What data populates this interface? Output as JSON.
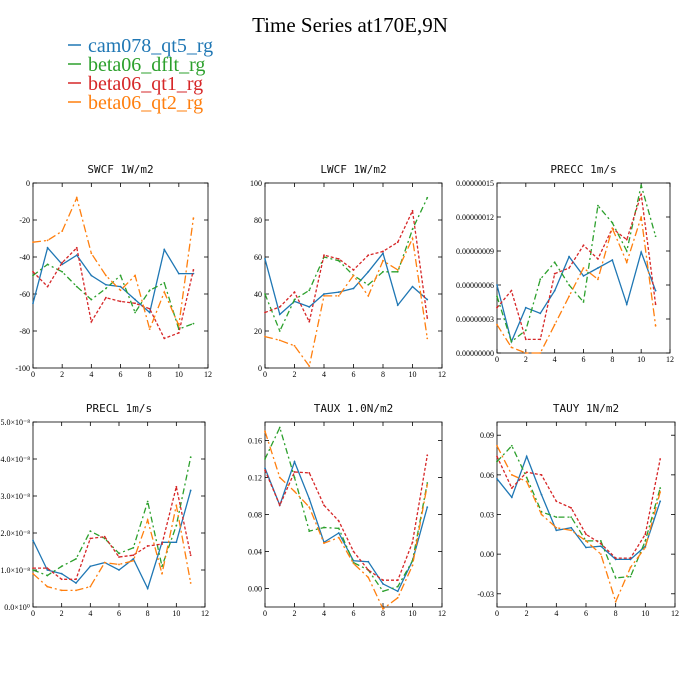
{
  "figure": {
    "title": "Time Series at170E,9N",
    "legend": [
      {
        "name": "cam078_qt5_rg",
        "color": "#1f77b4"
      },
      {
        "name": "beta06_dflt_rg",
        "color": "#2ca02c"
      },
      {
        "name": "beta06_qt1_rg",
        "color": "#d62728"
      },
      {
        "name": "beta06_qt2_rg",
        "color": "#ff7f0e"
      }
    ],
    "colors": {
      "cam078_qt5_rg": "#1f77b4",
      "beta06_dflt_rg": "#2ca02c",
      "beta06_qt1_rg": "#d62728",
      "beta06_qt2_rg": "#ff7f0e"
    }
  },
  "chart_data": [
    {
      "type": "line",
      "title": "SWCF   1W/m2",
      "xlim": [
        0,
        12
      ],
      "ylim": [
        -100,
        0
      ],
      "xticks": [
        0,
        2,
        4,
        6,
        8,
        10,
        12
      ],
      "xtick_labels": [
        "0",
        "2",
        "4",
        "6",
        "8",
        "10",
        "12"
      ],
      "yticks": [
        -100,
        -80,
        -60,
        -40,
        -20,
        0
      ],
      "ytick_labels": [
        "-100",
        "-80",
        "-60",
        "-40",
        "-20",
        "0"
      ],
      "x": [
        0,
        1,
        2,
        3,
        4,
        5,
        6,
        7,
        8,
        9,
        10,
        11
      ],
      "series": [
        {
          "name": "cam078_qt5_rg",
          "values": [
            -65,
            -35,
            -44,
            -39,
            -50,
            -55,
            -56,
            -63,
            -70,
            -36,
            -49,
            -49
          ]
        },
        {
          "name": "beta06_dflt_rg",
          "values": [
            -50,
            -44,
            -48,
            -56,
            -63,
            -57,
            -50,
            -70,
            -58,
            -54,
            -79,
            -76
          ]
        },
        {
          "name": "beta06_qt1_rg",
          "values": [
            -48,
            -56,
            -43,
            -35,
            -75,
            -62,
            -64,
            -65,
            -68,
            -84,
            -81,
            -47
          ]
        },
        {
          "name": "beta06_qt2_rg",
          "values": [
            -32,
            -31,
            -26,
            -8,
            -38,
            -50,
            -58,
            -50,
            -79,
            -59,
            -77,
            -19
          ]
        }
      ]
    },
    {
      "type": "line",
      "title": "LWCF   1W/m2",
      "xlim": [
        0,
        12
      ],
      "ylim": [
        0,
        100
      ],
      "xticks": [
        0,
        2,
        4,
        6,
        8,
        10,
        12
      ],
      "xtick_labels": [
        "0",
        "2",
        "4",
        "6",
        "8",
        "10",
        "12"
      ],
      "yticks": [
        0,
        20,
        40,
        60,
        80,
        100
      ],
      "ytick_labels": [
        "0",
        "20",
        "40",
        "60",
        "80",
        "100"
      ],
      "x": [
        0,
        1,
        2,
        3,
        4,
        5,
        6,
        7,
        8,
        9,
        10,
        11
      ],
      "series": [
        {
          "name": "cam078_qt5_rg",
          "values": [
            59,
            29,
            36,
            33,
            40,
            41,
            43,
            52,
            62,
            34,
            44,
            37
          ]
        },
        {
          "name": "beta06_dflt_rg",
          "values": [
            40,
            20,
            37,
            42,
            60,
            58,
            50,
            45,
            52,
            52,
            75,
            92
          ]
        },
        {
          "name": "beta06_qt1_rg",
          "values": [
            30,
            33,
            41,
            25,
            61,
            59,
            53,
            61,
            63,
            68,
            85,
            27
          ]
        },
        {
          "name": "beta06_qt2_rg",
          "values": [
            17,
            15,
            12,
            1,
            39,
            39,
            50,
            39,
            58,
            53,
            70,
            16
          ]
        }
      ]
    },
    {
      "type": "line",
      "title": "PRECC   1m/s",
      "xlim": [
        0,
        12
      ],
      "ylim": [
        0,
        1.5e-07
      ],
      "xticks": [
        0,
        2,
        4,
        6,
        8,
        10,
        12
      ],
      "xtick_labels": [
        "0",
        "2",
        "4",
        "6",
        "8",
        "10",
        "12"
      ],
      "yticks": [
        0,
        3e-08,
        6e-08,
        9e-08,
        1.2e-07,
        1.5e-07
      ],
      "ytick_labels": [
        "0.00000000",
        "0.00000003",
        "0.00000006",
        "0.00000009",
        "0.00000012",
        "0.00000015"
      ],
      "x": [
        0,
        1,
        2,
        3,
        4,
        5,
        6,
        7,
        8,
        9,
        10,
        11
      ],
      "series": [
        {
          "name": "cam078_qt5_rg",
          "values": [
            6e-08,
            1e-08,
            4e-08,
            3.5e-08,
            5.5e-08,
            8.5e-08,
            6.8e-08,
            7.5e-08,
            8.2e-08,
            4.3e-08,
            8.9e-08,
            5.5e-08
          ]
        },
        {
          "name": "beta06_dflt_rg",
          "values": [
            5e-08,
            1e-08,
            2e-08,
            6.5e-08,
            8e-08,
            6e-08,
            4.5e-08,
            1.3e-07,
            1.15e-07,
            9e-08,
            1.48e-07,
            1.03e-07
          ]
        },
        {
          "name": "beta06_qt1_rg",
          "values": [
            4e-08,
            5.5e-08,
            1.2e-08,
            1.2e-08,
            7e-08,
            7.5e-08,
            9.5e-08,
            8.3e-08,
            1.1e-07,
            1e-07,
            1.4e-07,
            4.3e-08
          ]
        },
        {
          "name": "beta06_qt2_rg",
          "values": [
            2.5e-08,
            5e-09,
            0,
            0,
            2.5e-08,
            5e-08,
            7.5e-08,
            6.5e-08,
            1.1e-07,
            8e-08,
            1.2e-07,
            2.4e-08
          ]
        }
      ]
    },
    {
      "type": "line",
      "title": "PRECL   1m/s",
      "xlim": [
        0,
        12
      ],
      "ylim": [
        0,
        5e-08
      ],
      "xticks": [
        0,
        2,
        4,
        6,
        8,
        10,
        12
      ],
      "xtick_labels": [
        "0",
        "2",
        "4",
        "6",
        "8",
        "10",
        "12"
      ],
      "yticks": [
        0,
        1e-08,
        2e-08,
        3e-08,
        4e-08,
        5e-08
      ],
      "ytick_labels": [
        "0.0×10⁰",
        "1.0×10⁻⁸",
        "2.0×10⁻⁸",
        "3.0×10⁻⁸",
        "4.0×10⁻⁸",
        "5.0×10⁻⁸"
      ],
      "x": [
        0,
        1,
        2,
        3,
        4,
        5,
        6,
        7,
        8,
        9,
        10,
        11
      ],
      "series": [
        {
          "name": "cam078_qt5_rg",
          "values": [
            1.8e-08,
            1e-08,
            9e-09,
            6.5e-09,
            1.1e-08,
            1.2e-08,
            1e-08,
            1.3e-08,
            5e-09,
            1.75e-08,
            1.75e-08,
            3.15e-08
          ]
        },
        {
          "name": "beta06_dflt_rg",
          "values": [
            1e-08,
            8.5e-09,
            1.1e-08,
            1.3e-08,
            2.05e-08,
            1.85e-08,
            1.45e-08,
            1.6e-08,
            2.85e-08,
            1.1e-08,
            2.2e-08,
            4.05e-08
          ]
        },
        {
          "name": "beta06_qt1_rg",
          "values": [
            1.05e-08,
            1.05e-08,
            7.5e-09,
            7.5e-09,
            1.85e-08,
            1.9e-08,
            1.35e-08,
            1.4e-08,
            1.65e-08,
            1.7e-08,
            3.25e-08,
            1.4e-08
          ]
        },
        {
          "name": "beta06_qt2_rg",
          "values": [
            9e-09,
            5.5e-09,
            4.5e-09,
            4.5e-09,
            5.5e-09,
            1.2e-08,
            1.15e-08,
            1.25e-08,
            2.35e-08,
            9e-09,
            2.75e-08,
            6.5e-09
          ]
        }
      ]
    },
    {
      "type": "line",
      "title": "TAUX   1.0N/m2",
      "xlim": [
        0,
        12
      ],
      "ylim": [
        -0.02,
        0.18
      ],
      "xticks": [
        0,
        2,
        4,
        6,
        8,
        10,
        12
      ],
      "xtick_labels": [
        "0",
        "2",
        "4",
        "6",
        "8",
        "10",
        "12"
      ],
      "yticks": [
        0,
        0.04,
        0.08,
        0.12,
        0.16
      ],
      "ytick_labels": [
        "0.00",
        "0.04",
        "0.08",
        "0.12",
        "0.16"
      ],
      "x": [
        0,
        1,
        2,
        3,
        4,
        5,
        6,
        7,
        8,
        9,
        10,
        11
      ],
      "series": [
        {
          "name": "cam078_qt5_rg",
          "values": [
            0.13,
            0.09,
            0.137,
            0.097,
            0.05,
            0.06,
            0.03,
            0.029,
            0.005,
            -0.003,
            0.03,
            0.088
          ]
        },
        {
          "name": "beta06_dflt_rg",
          "values": [
            0.14,
            0.174,
            0.12,
            0.062,
            0.066,
            0.065,
            0.028,
            0.02,
            -0.003,
            0.002,
            0.03,
            0.114
          ]
        },
        {
          "name": "beta06_qt1_rg",
          "values": [
            0.128,
            0.09,
            0.126,
            0.125,
            0.09,
            0.073,
            0.04,
            0.02,
            0.009,
            0.009,
            0.05,
            0.144
          ]
        },
        {
          "name": "beta06_qt2_rg",
          "values": [
            0.17,
            0.12,
            0.105,
            0.088,
            0.049,
            0.055,
            0.027,
            0.012,
            -0.022,
            -0.01,
            0.025,
            0.112
          ]
        }
      ]
    },
    {
      "type": "line",
      "title": "TAUY   1N/m2",
      "xlim": [
        0,
        12
      ],
      "ylim": [
        -0.04,
        0.1
      ],
      "xticks": [
        0,
        2,
        4,
        6,
        8,
        10,
        12
      ],
      "xtick_labels": [
        "0",
        "2",
        "4",
        "6",
        "8",
        "10",
        "12"
      ],
      "yticks": [
        -0.03,
        0,
        0.03,
        0.06,
        0.09
      ],
      "ytick_labels": [
        "-0.03",
        "0.00",
        "0.03",
        "0.06",
        "0.09"
      ],
      "x": [
        0,
        1,
        2,
        3,
        4,
        5,
        6,
        7,
        8,
        9,
        10,
        11
      ],
      "series": [
        {
          "name": "cam078_qt5_rg",
          "values": [
            0.057,
            0.043,
            0.074,
            0.045,
            0.018,
            0.02,
            0.005,
            0.006,
            -0.004,
            -0.004,
            0.006,
            0.04
          ]
        },
        {
          "name": "beta06_dflt_rg",
          "values": [
            0.07,
            0.082,
            0.058,
            0.032,
            0.028,
            0.028,
            0.01,
            0.01,
            -0.018,
            -0.017,
            0.01,
            0.05
          ]
        },
        {
          "name": "beta06_qt1_rg",
          "values": [
            0.074,
            0.05,
            0.062,
            0.06,
            0.04,
            0.035,
            0.015,
            0.008,
            -0.003,
            -0.003,
            0.015,
            0.072
          ]
        },
        {
          "name": "beta06_qt2_rg",
          "values": [
            0.082,
            0.06,
            0.055,
            0.03,
            0.02,
            0.018,
            0.01,
            0.0,
            -0.036,
            -0.01,
            0.005,
            0.047
          ]
        }
      ]
    }
  ]
}
